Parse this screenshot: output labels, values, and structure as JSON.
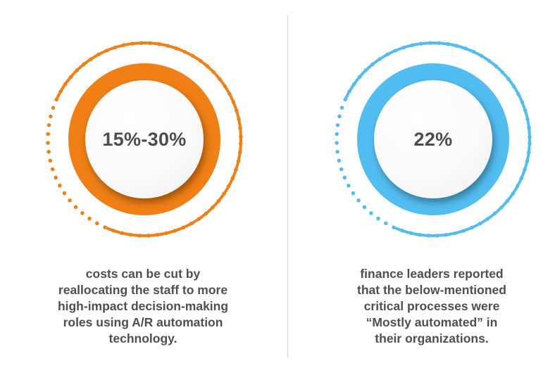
{
  "stats": [
    {
      "value": "15%-30%",
      "accent_color": "#f07f15",
      "description_lines": [
        "costs can be cut by",
        "reallocating the staff to more",
        "high-impact decision-making",
        "roles using A/R automation",
        "technology."
      ]
    },
    {
      "value": "22%",
      "accent_color": "#52bdf1",
      "description_lines": [
        "finance leaders reported",
        "that the below-mentioned",
        "critical processes were",
        "“Mostly automated” in",
        "their organizations."
      ]
    }
  ]
}
